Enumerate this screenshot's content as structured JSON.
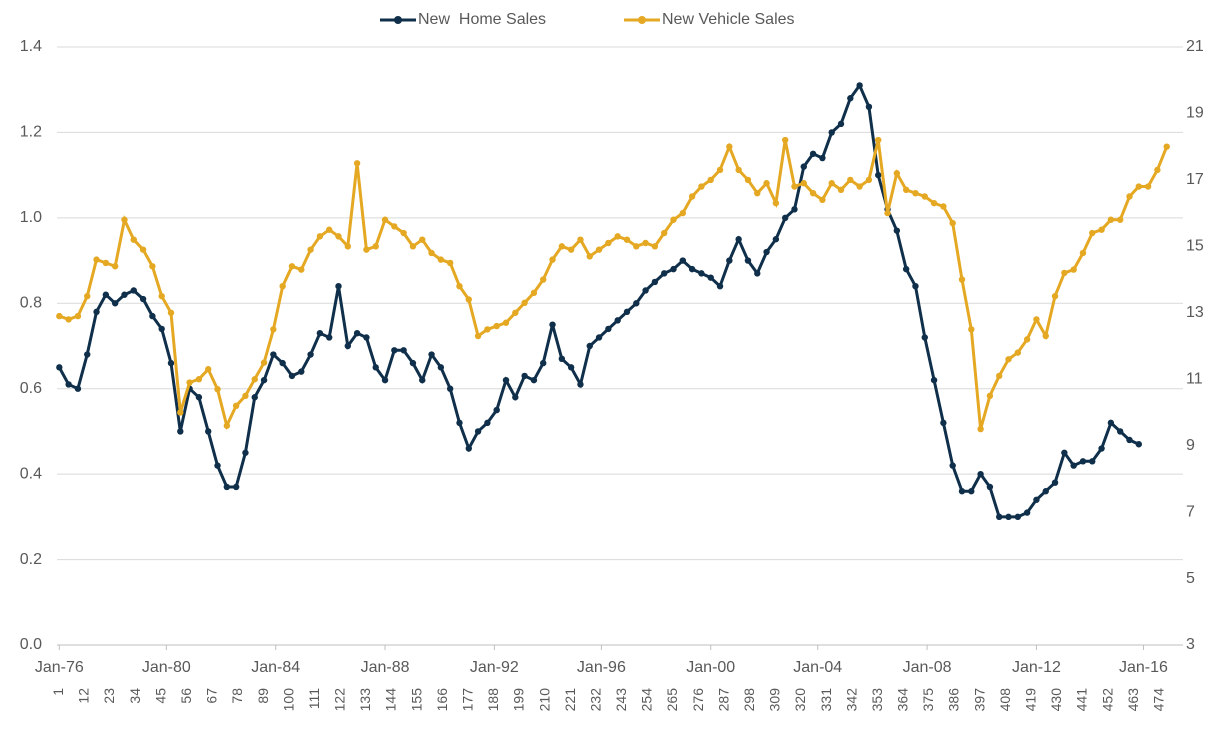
{
  "chart_data": {
    "type": "line",
    "legend": "top",
    "grid": true,
    "x": [
      1,
      5,
      9,
      13,
      17,
      21,
      25,
      29,
      33,
      37,
      41,
      45,
      49,
      53,
      57,
      61,
      65,
      69,
      73,
      77,
      81,
      85,
      89,
      93,
      97,
      101,
      105,
      109,
      113,
      117,
      121,
      125,
      129,
      133,
      137,
      141,
      145,
      149,
      153,
      157,
      161,
      165,
      169,
      173,
      177,
      181,
      185,
      189,
      193,
      197,
      201,
      205,
      209,
      213,
      217,
      221,
      225,
      229,
      233,
      237,
      241,
      245,
      249,
      253,
      257,
      261,
      265,
      269,
      273,
      277,
      281,
      285,
      289,
      293,
      297,
      301,
      305,
      309,
      313,
      317,
      321,
      325,
      329,
      333,
      337,
      341,
      345,
      349,
      353,
      357,
      361,
      365,
      369,
      373,
      377,
      381,
      385,
      389,
      393,
      397,
      401,
      405,
      409,
      413,
      417,
      421,
      425,
      429,
      433,
      437,
      441,
      445,
      449,
      453,
      457,
      461,
      465,
      469,
      473,
      477
    ],
    "xlim": [
      0,
      484
    ],
    "xticks": [
      1,
      12,
      23,
      34,
      45,
      56,
      67,
      78,
      89,
      100,
      111,
      122,
      133,
      144,
      155,
      166,
      177,
      188,
      199,
      210,
      221,
      232,
      243,
      254,
      265,
      276,
      287,
      298,
      309,
      320,
      331,
      342,
      353,
      364,
      375,
      386,
      397,
      408,
      419,
      430,
      441,
      452,
      463,
      474
    ],
    "date_ticks": [
      {
        "value": 1,
        "label": "Jan-76"
      },
      {
        "value": 47,
        "label": "Jan-80"
      },
      {
        "value": 94,
        "label": "Jan-84"
      },
      {
        "value": 141,
        "label": "Jan-88"
      },
      {
        "value": 188,
        "label": "Jan-92"
      },
      {
        "value": 234,
        "label": "Jan-96"
      },
      {
        "value": 281,
        "label": "Jan-00"
      },
      {
        "value": 327,
        "label": "Jan-04"
      },
      {
        "value": 374,
        "label": "Jan-08"
      },
      {
        "value": 421,
        "label": "Jan-12"
      },
      {
        "value": 467,
        "label": "Jan-16"
      }
    ],
    "ylim": [
      0,
      1.4
    ],
    "yticks": [
      {
        "value": 0,
        "label": "0.0"
      },
      0.2,
      0.4,
      0.6,
      0.8,
      {
        "value": 1,
        "label": "1.0"
      },
      1.2,
      1.4
    ],
    "y2lim": [
      3,
      21
    ],
    "y2ticks": [
      3,
      5,
      7,
      9,
      11,
      13,
      15,
      17,
      19,
      21
    ],
    "series": [
      {
        "name": "New  Home Sales",
        "color": "#0f2f4a",
        "axis": "y",
        "values": [
          0.65,
          0.61,
          0.6,
          0.68,
          0.78,
          0.82,
          0.8,
          0.82,
          0.83,
          0.81,
          0.77,
          0.74,
          0.66,
          0.5,
          0.6,
          0.58,
          0.5,
          0.42,
          0.37,
          0.37,
          0.45,
          0.58,
          0.62,
          0.68,
          0.66,
          0.63,
          0.64,
          0.68,
          0.73,
          0.72,
          0.84,
          0.7,
          0.73,
          0.72,
          0.65,
          0.62,
          0.69,
          0.69,
          0.66,
          0.62,
          0.68,
          0.65,
          0.6,
          0.52,
          0.46,
          0.5,
          0.52,
          0.55,
          0.62,
          0.58,
          0.63,
          0.62,
          0.66,
          0.75,
          0.67,
          0.65,
          0.61,
          0.7,
          0.72,
          0.74,
          0.76,
          0.78,
          0.8,
          0.83,
          0.85,
          0.87,
          0.88,
          0.9,
          0.88,
          0.87,
          0.86,
          0.84,
          0.9,
          0.95,
          0.9,
          0.87,
          0.92,
          0.95,
          1.0,
          1.02,
          1.12,
          1.15,
          1.14,
          1.2,
          1.22,
          1.28,
          1.31,
          1.26,
          1.1,
          1.02,
          0.97,
          0.88,
          0.84,
          0.72,
          0.62,
          0.52,
          0.42,
          0.36,
          0.36,
          0.4,
          0.37,
          0.3,
          0.3,
          0.3,
          0.31,
          0.34,
          0.36,
          0.38,
          0.45,
          0.42,
          0.43,
          0.43,
          0.46,
          0.52,
          0.5,
          0.48,
          0.47,
          null,
          null,
          null
        ]
      },
      {
        "name": "New Vehicle Sales",
        "color": "#e5a823",
        "axis": "y2",
        "values": [
          12.9,
          12.8,
          12.9,
          13.5,
          14.6,
          14.5,
          14.4,
          15.8,
          15.2,
          14.9,
          14.4,
          13.5,
          13.0,
          10.0,
          10.9,
          11.0,
          11.3,
          10.7,
          9.6,
          10.2,
          10.5,
          11.0,
          11.5,
          12.5,
          13.8,
          14.4,
          14.3,
          14.9,
          15.3,
          15.5,
          15.3,
          15.0,
          17.5,
          14.9,
          15.0,
          15.8,
          15.6,
          15.4,
          15.0,
          15.2,
          14.8,
          14.6,
          14.5,
          13.8,
          13.4,
          12.3,
          12.5,
          12.6,
          12.7,
          13.0,
          13.3,
          13.6,
          14.0,
          14.6,
          15.0,
          14.9,
          15.2,
          14.7,
          14.9,
          15.1,
          15.3,
          15.2,
          15.0,
          15.1,
          15.0,
          15.4,
          15.8,
          16.0,
          16.5,
          16.8,
          17.0,
          17.3,
          18.0,
          17.3,
          17.0,
          16.6,
          16.9,
          16.3,
          18.2,
          16.8,
          16.9,
          16.6,
          16.4,
          16.9,
          16.7,
          17.0,
          16.8,
          17.0,
          18.2,
          16.0,
          17.2,
          16.7,
          16.6,
          16.5,
          16.3,
          16.2,
          15.7,
          14.0,
          12.5,
          9.5,
          10.5,
          11.1,
          11.6,
          11.8,
          12.2,
          12.8,
          12.3,
          13.5,
          14.2,
          14.3,
          14.8,
          15.4,
          15.5,
          15.8,
          15.8,
          16.5,
          16.8,
          16.8,
          17.3,
          18.0
        ]
      }
    ]
  }
}
